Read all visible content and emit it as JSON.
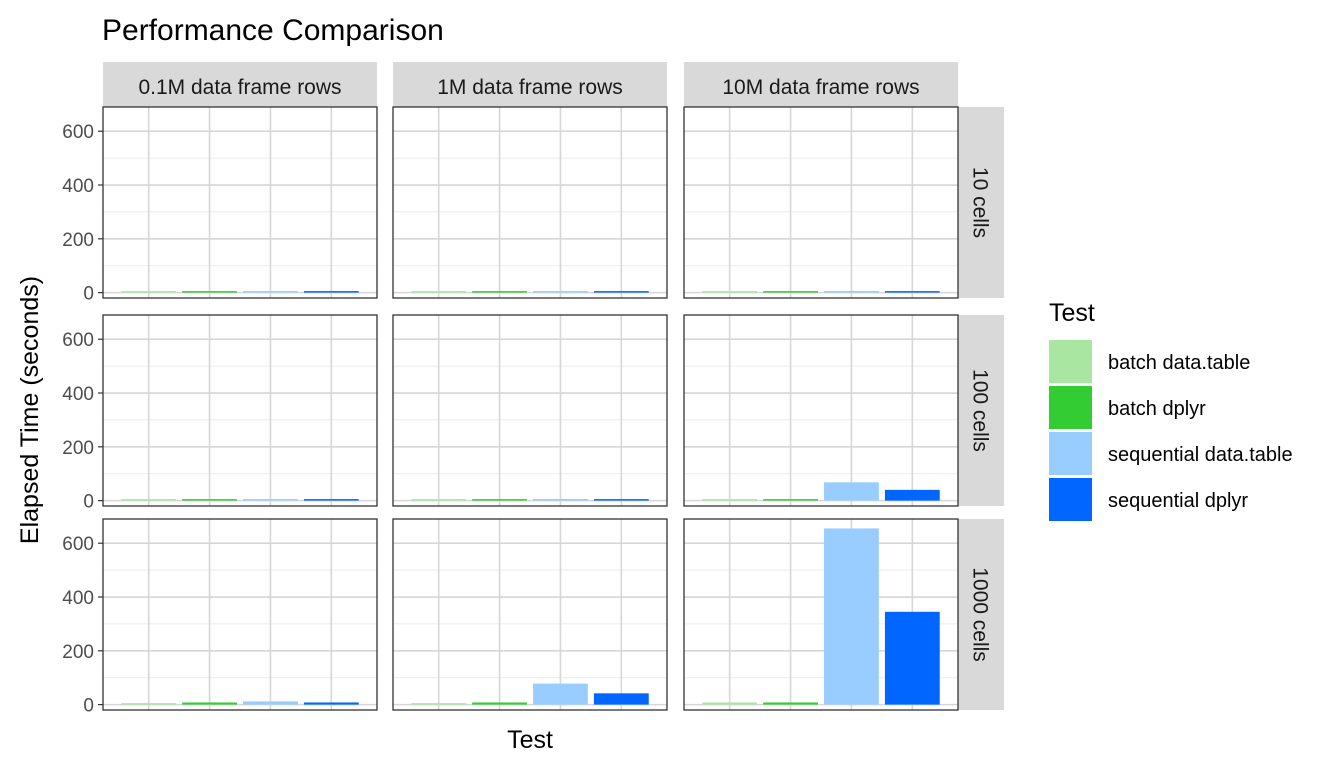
{
  "chart_data": {
    "type": "bar",
    "title": "Performance Comparison",
    "xlabel": "Test",
    "ylabel": "Elapsed Time (seconds)",
    "ylim": [
      0,
      690
    ],
    "yticks": [
      0,
      200,
      400,
      600
    ],
    "grid": true,
    "legend": {
      "title": "Test",
      "position": "right",
      "entries": [
        {
          "label": "batch data.table",
          "color": "#a8e6a1"
        },
        {
          "label": "batch dplyr",
          "color": "#33cc33"
        },
        {
          "label": "sequential data.table",
          "color": "#99ccff"
        },
        {
          "label": "sequential dplyr",
          "color": "#0066ff"
        }
      ]
    },
    "categories": [
      "batch data.table",
      "batch dplyr",
      "sequential data.table",
      "sequential dplyr"
    ],
    "facet_columns": [
      "0.1M  data frame rows",
      "1M  data frame rows",
      "10M  data frame rows"
    ],
    "facet_rows": [
      "10  cells",
      "100  cells",
      "1000  cells"
    ],
    "panels": [
      {
        "row": 0,
        "col": 0,
        "values": [
          0.2,
          0.3,
          0.4,
          0.4
        ]
      },
      {
        "row": 0,
        "col": 1,
        "values": [
          0.3,
          0.5,
          1,
          0.8
        ]
      },
      {
        "row": 0,
        "col": 2,
        "values": [
          0.8,
          1.2,
          6,
          4
        ]
      },
      {
        "row": 1,
        "col": 0,
        "values": [
          0.4,
          0.6,
          2,
          3
        ]
      },
      {
        "row": 1,
        "col": 1,
        "values": [
          0.6,
          1,
          6,
          4
        ]
      },
      {
        "row": 1,
        "col": 2,
        "values": [
          2,
          4,
          68,
          40
        ]
      },
      {
        "row": 2,
        "col": 0,
        "values": [
          1.5,
          8,
          12,
          8
        ]
      },
      {
        "row": 2,
        "col": 1,
        "values": [
          1.5,
          8,
          78,
          42
        ]
      },
      {
        "row": 2,
        "col": 2,
        "values": [
          8,
          8,
          655,
          345
        ]
      }
    ]
  }
}
